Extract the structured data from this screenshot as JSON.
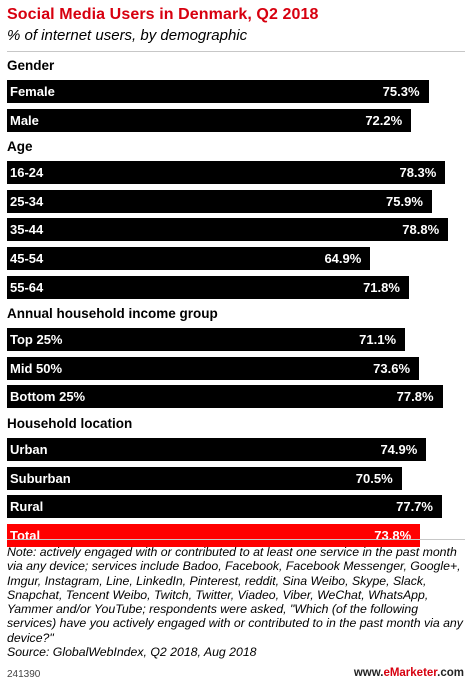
{
  "header": {
    "title": "Social Media Users in Denmark, Q2 2018",
    "subtitle": "% of internet users, by demographic"
  },
  "chart_data": {
    "type": "bar",
    "title": "Social Media Users in Denmark, Q2 2018",
    "subtitle": "% of internet users, by demographic",
    "unit": "%",
    "xlim": [
      0,
      80
    ],
    "groups": [
      {
        "name": "Gender",
        "items": [
          {
            "label": "Female",
            "value": 75.3,
            "display": "75.3%"
          },
          {
            "label": "Male",
            "value": 72.2,
            "display": "72.2%"
          }
        ]
      },
      {
        "name": "Age",
        "items": [
          {
            "label": "16-24",
            "value": 78.3,
            "display": "78.3%"
          },
          {
            "label": "25-34",
            "value": 75.9,
            "display": "75.9%"
          },
          {
            "label": "35-44",
            "value": 78.8,
            "display": "78.8%"
          },
          {
            "label": "45-54",
            "value": 64.9,
            "display": "64.9%"
          },
          {
            "label": "55-64",
            "value": 71.8,
            "display": "71.8%"
          }
        ]
      },
      {
        "name": "Annual household income group",
        "items": [
          {
            "label": "Top 25%",
            "value": 71.1,
            "display": "71.1%"
          },
          {
            "label": "Mid 50%",
            "value": 73.6,
            "display": "73.6%"
          },
          {
            "label": "Bottom 25%",
            "value": 77.8,
            "display": "77.8%"
          }
        ]
      },
      {
        "name": "Household location",
        "items": [
          {
            "label": "Urban",
            "value": 74.9,
            "display": "74.9%"
          },
          {
            "label": "Suburban",
            "value": 70.5,
            "display": "70.5%"
          },
          {
            "label": "Rural",
            "value": 77.7,
            "display": "77.7%"
          }
        ]
      }
    ],
    "total": {
      "label": "Total",
      "value": 73.8,
      "display": "73.8%"
    },
    "colors": {
      "bar": "#000000",
      "total": "#ff0000",
      "title": "#d7000f"
    }
  },
  "footer": {
    "note": "Note: actively engaged with or contributed to at least one service in the past month via any device; services include Badoo, Facebook, Facebook Messenger, Google+, Imgur, Instagram, Line, LinkedIn, Pinterest, reddit, Sina Weibo, Skype, Slack, Snapchat, Tencent Weibo, Twitch, Twitter, Viadeo, Viber, WeChat, WhatsApp, Yammer and/or YouTube; respondents were asked, \"Which (of the following services) have you actively engaged with or contributed to in the past month via any device?\"",
    "source": "Source: GlobalWebIndex, Q2 2018, Aug 2018",
    "chart_id": "241390",
    "brand_prefix": "www.",
    "brand_name": "eMarketer",
    "brand_suffix": ".com"
  }
}
